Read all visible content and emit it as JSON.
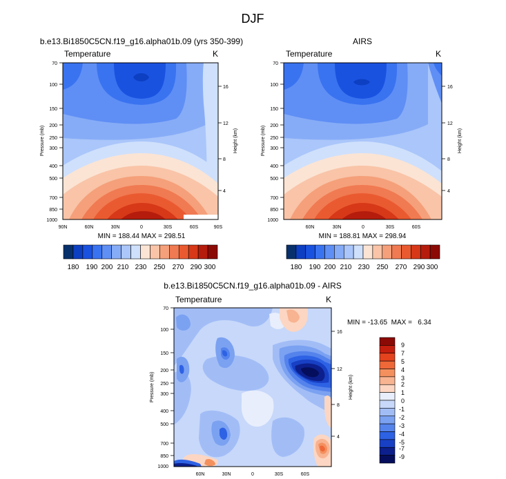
{
  "figure_title": "DJF",
  "chart_data": [
    {
      "type": "heatmap",
      "id": "model",
      "title": "b.e13.Bi1850C5CN.f19_g16.alpha01b.09 (yrs 350-399)",
      "left_label": "Temperature",
      "right_label": "K",
      "ylabel": "Pressure (mb)",
      "y2label": "Height (km)",
      "pressure_ticks": [
        "70",
        "100",
        "150",
        "200",
        "250",
        "300",
        "400",
        "500",
        "700",
        "850",
        "1000"
      ],
      "height_ticks": [
        "4",
        "8",
        "12",
        "16"
      ],
      "lat_ticks": [
        "90N",
        "60N",
        "30N",
        "0",
        "30S",
        "60S",
        "90S"
      ],
      "min_max": "MIN = 188.44  MAX = 298.51",
      "value_range": [
        188.44,
        298.51
      ]
    },
    {
      "type": "heatmap",
      "id": "airs",
      "title": "AIRS",
      "left_label": "Temperature",
      "right_label": "K",
      "ylabel": "Pressure (mb)",
      "y2label": "Height (km)",
      "pressure_ticks": [
        "70",
        "100",
        "150",
        "200",
        "250",
        "300",
        "400",
        "500",
        "700",
        "850",
        "1000"
      ],
      "height_ticks": [
        "4",
        "8",
        "12",
        "16"
      ],
      "lat_ticks": [
        "60N",
        "30N",
        "0",
        "30S",
        "60S"
      ],
      "min_max": "MIN = 188.81  MAX = 298.94",
      "value_range": [
        188.81,
        298.94
      ]
    },
    {
      "type": "heatmap",
      "id": "diff",
      "title": "b.e13.Bi1850C5CN.f19_g16.alpha01b.09 - AIRS",
      "left_label": "Temperature",
      "right_label": "K",
      "ylabel": "Pressure (mb)",
      "y2label": "Height (km)",
      "pressure_ticks": [
        "70",
        "100",
        "150",
        "200",
        "250",
        "300",
        "400",
        "500",
        "700",
        "850",
        "1000"
      ],
      "height_ticks": [
        "4",
        "8",
        "12",
        "16"
      ],
      "lat_ticks": [
        "60N",
        "30N",
        "0",
        "30S",
        "60S"
      ],
      "min_max": "MIN = -13.65  MAX =   6.34",
      "value_range": [
        -13.65,
        6.34
      ]
    }
  ],
  "colorbar_abs": {
    "labels": [
      "180",
      "190",
      "200",
      "210",
      "230",
      "250",
      "270",
      "290",
      "300"
    ],
    "colors": [
      "#08306b",
      "#0d3fc2",
      "#1a52e0",
      "#3a73f0",
      "#5f8ff5",
      "#87acf7",
      "#aac6fa",
      "#cfe0fc",
      "#fbe4d4",
      "#f9c4a8",
      "#f5a07a",
      "#f07a52",
      "#ea5a30",
      "#d63818",
      "#b51c0c",
      "#8c0a05"
    ]
  },
  "colorbar_diff": {
    "labels": [
      "9",
      "7",
      "5",
      "4",
      "3",
      "2",
      "1",
      "0",
      "-1",
      "-2",
      "-3",
      "-4",
      "-5",
      "-7",
      "-9"
    ],
    "colors": [
      "#8c0a05",
      "#c41e0e",
      "#e4431e",
      "#ef6838",
      "#f4905e",
      "#f8b391",
      "#fcd6c2",
      "#e8eefc",
      "#c7d8fa",
      "#a2bdf6",
      "#7ba1f1",
      "#5583ec",
      "#2e62e4",
      "#1840c4",
      "#0c1f8c",
      "#050e5c"
    ]
  }
}
